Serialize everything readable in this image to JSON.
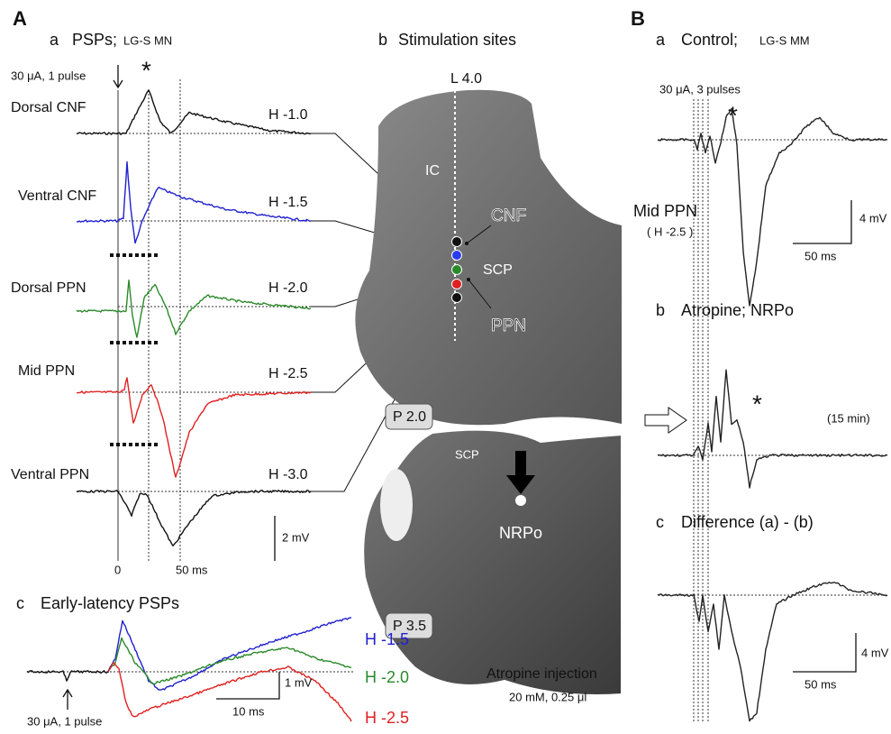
{
  "panel_A": {
    "label": "A",
    "a": {
      "label": "a",
      "title": "PSPs;",
      "subtitle": "LG-S MN",
      "stim": "30 μA, 1 pulse",
      "asterisk": "*",
      "traces": [
        {
          "name": "Dorsal CNF",
          "depth": "H -1.0"
        },
        {
          "name": "Ventral CNF",
          "depth": "H -1.5"
        },
        {
          "name": "Dorsal PPN",
          "depth": "H -2.0"
        },
        {
          "name": "Mid PPN",
          "depth": "H -2.5"
        },
        {
          "name": "Ventral PPN",
          "depth": "H -3.0"
        }
      ],
      "scale_mv": "2 mV",
      "axis_zero": "0",
      "scale_ms": "50 ms"
    },
    "b": {
      "label": "b",
      "title": "Stimulation sites",
      "line_label": "L 4.0",
      "regions": [
        "IC",
        "CNF",
        "SCP",
        "PPN",
        "SCP",
        "NRPo"
      ],
      "planes": [
        "P 2.0",
        "P 3.5"
      ],
      "injection": "Atropine injection",
      "injection_detail": "20 mM, 0.25 μl"
    },
    "c": {
      "label": "c",
      "title": "Early-latency PSPs",
      "stim": "30 μA, 1 pulse",
      "traces": [
        "H -1.5",
        "H -2.0",
        "H -2.5"
      ],
      "scale_mv": "1 mV",
      "scale_ms": "10 ms"
    }
  },
  "panel_B": {
    "label": "B",
    "a": {
      "label": "a",
      "title": "Control;",
      "subtitle": "LG-S MM",
      "stim": "30 μA, 3 pulses",
      "asterisk": "*",
      "site": "Mid PPN",
      "depth": "( H -2.5 )",
      "scale_mv": "4 mV",
      "scale_ms": "50 ms"
    },
    "b": {
      "label": "b",
      "title": "Atropine; NRPo",
      "asterisk": "*",
      "time": "(15 min)"
    },
    "c": {
      "label": "c",
      "title": "Difference (a) - (b)",
      "scale_mv": "4 mV",
      "scale_ms": "50 ms"
    }
  }
}
